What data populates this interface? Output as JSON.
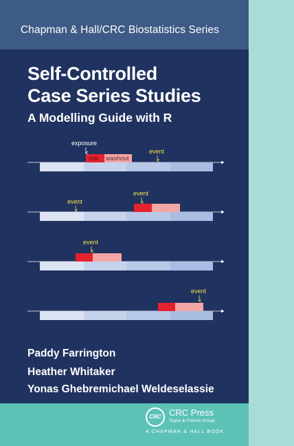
{
  "series": {
    "text": "Chapman & Hall/CRC Biostatistics Series"
  },
  "title": {
    "line1": "Self-Controlled",
    "line2": "Case Series Studies",
    "subtitle": "A Modelling Guide with R"
  },
  "diagram": {
    "labels": {
      "exposure": "exposure",
      "risk": "risk",
      "washout": "washout",
      "event": "event"
    },
    "colors": {
      "risk": "#e5232d",
      "washout": "#f4a6a6",
      "timeline_light": "#dce4f3",
      "timeline_mid": "#c6d3ec",
      "timeline_dark": "#a9bde3",
      "event_label": "#f3e24a",
      "axis": "#ffffff"
    }
  },
  "authors": [
    "Paddy Farrington",
    "Heather Whitaker",
    "Yonas Ghebremichael Weldeselassie"
  ],
  "publisher": {
    "logo_text": "CRC",
    "name": "CRC Press",
    "sub": "Taylor & Francis Group",
    "book": "A CHAPMAN & HALL BOOK"
  }
}
